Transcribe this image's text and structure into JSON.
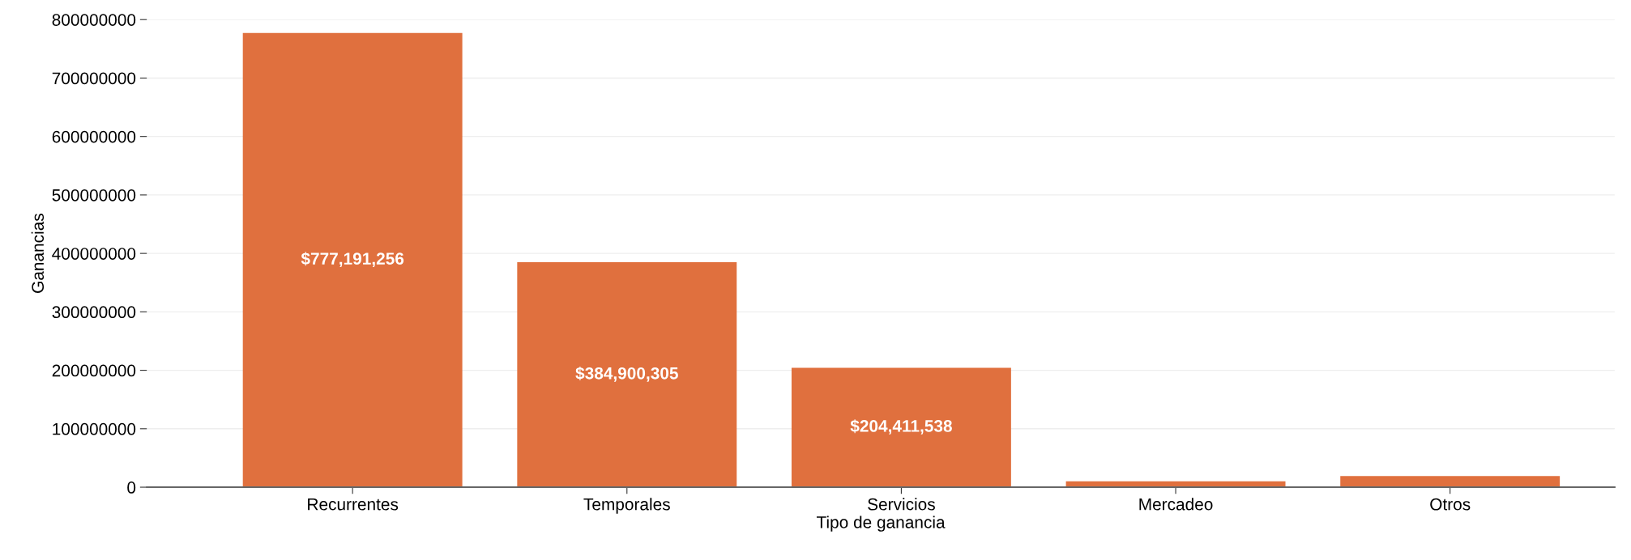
{
  "chart_data": {
    "type": "bar",
    "xlabel": "Tipo de ganancia",
    "ylabel": "Ganancias",
    "categories": [
      "Recurrentes",
      "Temporales",
      "Servicios",
      "Mercadeo",
      "Otros"
    ],
    "values": [
      777191256,
      384900305,
      204411538,
      10000000,
      19000000
    ],
    "value_labels": [
      "$777,191,256",
      "$384,900,305",
      "$204,411,538",
      null,
      null
    ],
    "color": "#e0703e",
    "ylim": [
      0,
      800000000
    ],
    "yticks": [
      0,
      100000000,
      200000000,
      300000000,
      400000000,
      500000000,
      600000000,
      700000000,
      800000000
    ],
    "grid": "y"
  }
}
